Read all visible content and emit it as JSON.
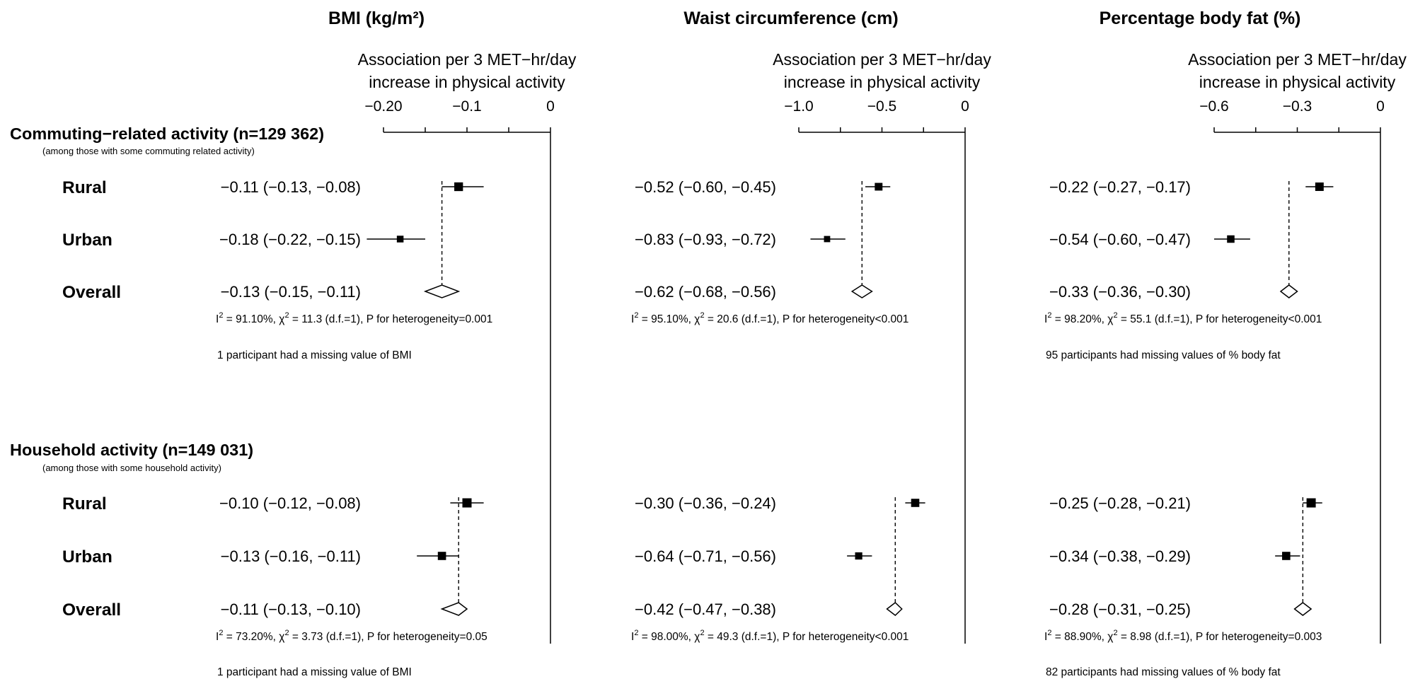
{
  "chart_data": {
    "type": "forest",
    "axis_label_line1": "Association per 3 MET−hr/day",
    "axis_label_line2": "increase in physical activity",
    "groups": [
      {
        "title": "Commuting−related activity (n=129 362)",
        "subtitle": "(among those with some commuting related activity)",
        "rows": [
          "Rural",
          "Urban",
          "Overall"
        ]
      },
      {
        "title": "Household activity (n=149 031)",
        "subtitle": "(among those with some household activity)",
        "rows": [
          "Rural",
          "Urban",
          "Overall"
        ]
      }
    ],
    "panels": [
      {
        "title": "BMI (kg/m²)",
        "xlim": [
          -0.2,
          0
        ],
        "ticks": [
          -0.2,
          -0.15,
          -0.1,
          -0.05,
          0
        ],
        "tick_labels": [
          "−0.20",
          "",
          "−0.1",
          "",
          "0"
        ],
        "groups": [
          {
            "rows": [
              {
                "label": "Rural",
                "est": -0.11,
                "lo": -0.13,
                "hi": -0.08,
                "text": "−0.11 (−0.13, −0.08)",
                "weight": 0.9
              },
              {
                "label": "Urban",
                "est": -0.18,
                "lo": -0.22,
                "hi": -0.15,
                "text": "−0.18 (−0.22, −0.15)",
                "weight": 0.5
              },
              {
                "label": "Overall",
                "est": -0.13,
                "lo": -0.15,
                "hi": -0.11,
                "text": "−0.13 (−0.15, −0.11)",
                "summary": true
              }
            ],
            "heterogeneity": {
              "i2": "91.10%",
              "chi2": "11.3",
              "df": "1",
              "p": "=0.001"
            },
            "note": "1 participant had a missing value of BMI"
          },
          {
            "rows": [
              {
                "label": "Rural",
                "est": -0.1,
                "lo": -0.12,
                "hi": -0.08,
                "text": "−0.10 (−0.12, −0.08)",
                "weight": 1.0
              },
              {
                "label": "Urban",
                "est": -0.13,
                "lo": -0.16,
                "hi": -0.11,
                "text": "−0.13 (−0.16, −0.11)",
                "weight": 0.8
              },
              {
                "label": "Overall",
                "est": -0.11,
                "lo": -0.13,
                "hi": -0.1,
                "text": "−0.11 (−0.13, −0.10)",
                "summary": true
              }
            ],
            "heterogeneity": {
              "i2": "73.20%",
              "chi2": "3.73",
              "df": "1",
              "p": "=0.05"
            },
            "note": "1 participant had a missing value of BMI"
          }
        ]
      },
      {
        "title": "Waist circumference (cm)",
        "xlim": [
          -1.0,
          0
        ],
        "ticks": [
          -1.0,
          -0.75,
          -0.5,
          -0.25,
          0
        ],
        "tick_labels": [
          "−1.0",
          "",
          "−0.5",
          "",
          "0"
        ],
        "groups": [
          {
            "rows": [
              {
                "label": "Rural",
                "est": -0.52,
                "lo": -0.6,
                "hi": -0.45,
                "text": "−0.52 (−0.60, −0.45)",
                "weight": 0.7
              },
              {
                "label": "Urban",
                "est": -0.83,
                "lo": -0.93,
                "hi": -0.72,
                "text": "−0.83 (−0.93, −0.72)",
                "weight": 0.4
              },
              {
                "label": "Overall",
                "est": -0.62,
                "lo": -0.68,
                "hi": -0.56,
                "text": "−0.62 (−0.68, −0.56)",
                "summary": true
              }
            ],
            "heterogeneity": {
              "i2": "95.10%",
              "chi2": "20.6",
              "df": "1",
              "p": "<0.001"
            },
            "note": ""
          },
          {
            "rows": [
              {
                "label": "Rural",
                "est": -0.3,
                "lo": -0.36,
                "hi": -0.24,
                "text": "−0.30 (−0.36, −0.24)",
                "weight": 0.8
              },
              {
                "label": "Urban",
                "est": -0.64,
                "lo": -0.71,
                "hi": -0.56,
                "text": "−0.64 (−0.71, −0.56)",
                "weight": 0.6
              },
              {
                "label": "Overall",
                "est": -0.42,
                "lo": -0.47,
                "hi": -0.38,
                "text": "−0.42 (−0.47, −0.38)",
                "summary": true
              }
            ],
            "heterogeneity": {
              "i2": "98.00%",
              "chi2": "49.3",
              "df": "1",
              "p": "<0.001"
            },
            "note": ""
          }
        ]
      },
      {
        "title": "Percentage body fat (%)",
        "xlim": [
          -0.6,
          0
        ],
        "ticks": [
          -0.6,
          -0.45,
          -0.3,
          -0.15,
          0
        ],
        "tick_labels": [
          "−0.6",
          "",
          "−0.3",
          "",
          "0"
        ],
        "groups": [
          {
            "rows": [
              {
                "label": "Rural",
                "est": -0.22,
                "lo": -0.27,
                "hi": -0.17,
                "text": "−0.22 (−0.27, −0.17)",
                "weight": 0.85
              },
              {
                "label": "Urban",
                "est": -0.54,
                "lo": -0.6,
                "hi": -0.47,
                "text": "−0.54 (−0.60, −0.47)",
                "weight": 0.65
              },
              {
                "label": "Overall",
                "est": -0.33,
                "lo": -0.36,
                "hi": -0.3,
                "text": "−0.33 (−0.36, −0.30)",
                "summary": true
              }
            ],
            "heterogeneity": {
              "i2": "98.20%",
              "chi2": "55.1",
              "df": "1",
              "p": "<0.001"
            },
            "note": "95 participants had missing values of % body fat"
          },
          {
            "rows": [
              {
                "label": "Rural",
                "est": -0.25,
                "lo": -0.28,
                "hi": -0.21,
                "text": "−0.25 (−0.28, −0.21)",
                "weight": 1.0
              },
              {
                "label": "Urban",
                "est": -0.34,
                "lo": -0.38,
                "hi": -0.29,
                "text": "−0.34 (−0.38, −0.29)",
                "weight": 0.8
              },
              {
                "label": "Overall",
                "est": -0.28,
                "lo": -0.31,
                "hi": -0.25,
                "text": "−0.28 (−0.31, −0.25)",
                "summary": true
              }
            ],
            "heterogeneity": {
              "i2": "88.90%",
              "chi2": "8.98",
              "df": "1",
              "p": "=0.003"
            },
            "note": "82 participants had missing values of % body fat"
          }
        ]
      }
    ]
  }
}
